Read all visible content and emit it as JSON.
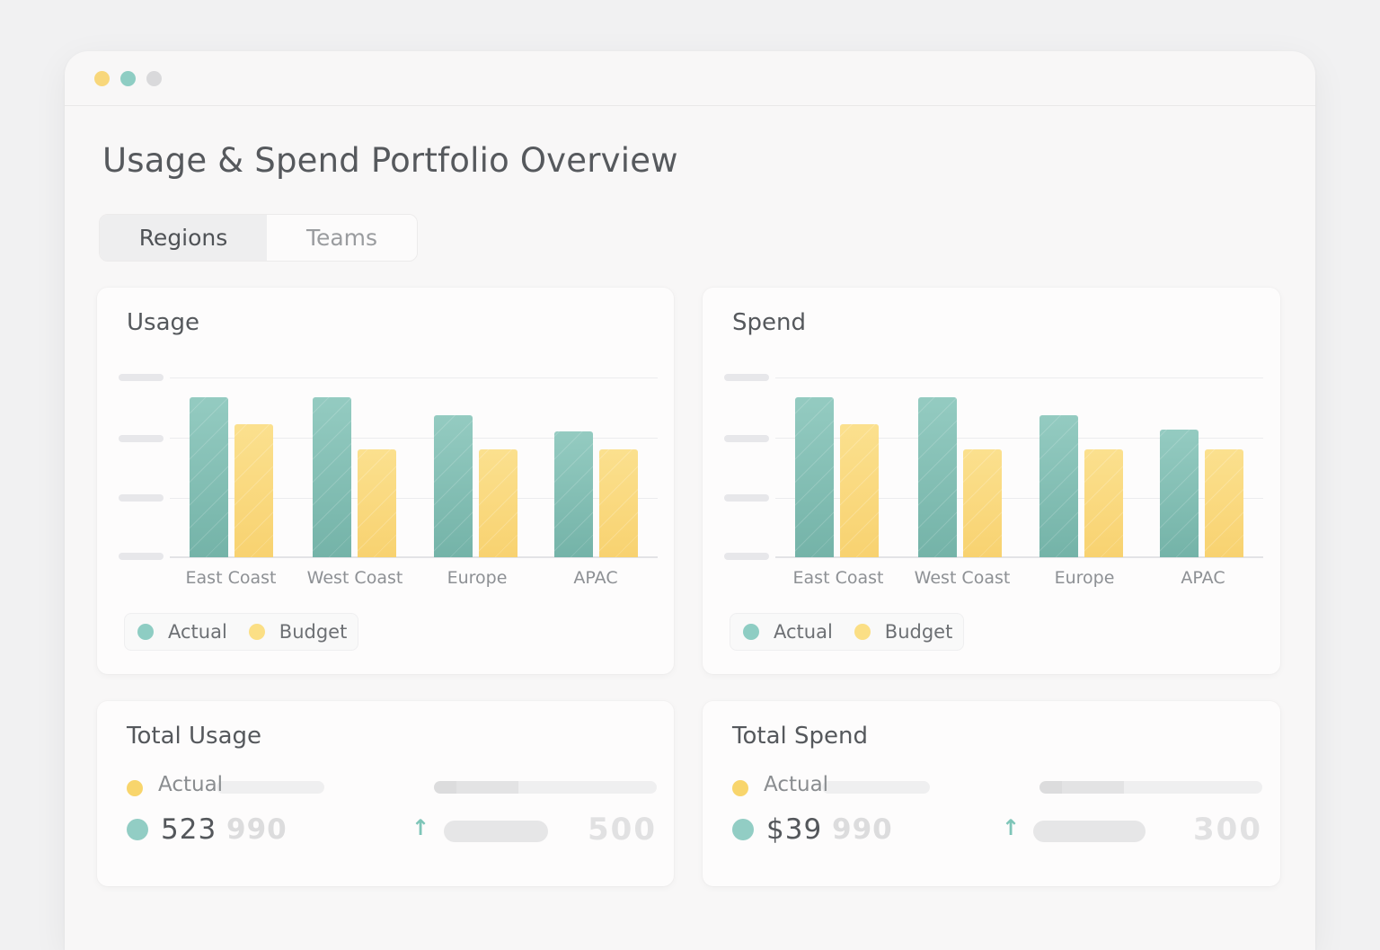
{
  "window": {
    "controls": [
      {
        "name": "minimize",
        "color": "#f8d77b"
      },
      {
        "name": "maximize",
        "color": "#8ecdc3"
      },
      {
        "name": "close",
        "color": "#d9d9db"
      }
    ]
  },
  "header": {
    "title": "Usage & Spend Portfolio Overview"
  },
  "tabs": [
    {
      "label": "Regions",
      "active": true
    },
    {
      "label": "Teams",
      "active": false
    }
  ],
  "colors": {
    "actual": "#8dc8bd",
    "budget": "#fad97c",
    "title_text": "#56595d",
    "muted_text": "#8d9094"
  },
  "usage_card": {
    "title": "Usage",
    "legend": [
      {
        "label": "Actual"
      },
      {
        "label": "Budget"
      }
    ]
  },
  "spend_card": {
    "title": "Spend",
    "legend": [
      {
        "label": "Actual"
      },
      {
        "label": "Budget"
      }
    ]
  },
  "total_usage": {
    "title": "Total Usage",
    "row_label": "Actual",
    "value_main": "523",
    "value_ghost": "990",
    "trend": "up",
    "trend_ghost": "500"
  },
  "total_spend": {
    "title": "Total Spend",
    "row_label": "Actual",
    "value_main": "$39",
    "value_ghost": "990",
    "trend": "up",
    "trend_ghost": "300"
  },
  "chart_data": [
    {
      "type": "bar",
      "title": "Usage",
      "xlabel": "",
      "ylabel": "",
      "categories": [
        "East Coast",
        "West Coast",
        "Europe",
        "APAC"
      ],
      "series": [
        {
          "name": "Actual",
          "values": [
            89,
            89,
            79,
            70
          ]
        },
        {
          "name": "Budget",
          "values": [
            74,
            60,
            60,
            60
          ]
        }
      ],
      "ylim": [
        0,
        100
      ],
      "ytick_labels_hidden": true,
      "grid": true,
      "legend_position": "bottom-left",
      "value_scale_note": "relative to top gridline (=100); axis tick labels not rendered"
    },
    {
      "type": "bar",
      "title": "Spend",
      "xlabel": "",
      "ylabel": "",
      "categories": [
        "East Coast",
        "West Coast",
        "Europe",
        "APAC"
      ],
      "series": [
        {
          "name": "Actual",
          "values": [
            89,
            89,
            79,
            71
          ]
        },
        {
          "name": "Budget",
          "values": [
            74,
            60,
            60,
            60
          ]
        }
      ],
      "ylim": [
        0,
        100
      ],
      "ytick_labels_hidden": true,
      "grid": true,
      "legend_position": "bottom-left",
      "value_scale_note": "relative to top gridline (=100); axis tick labels not rendered"
    }
  ]
}
